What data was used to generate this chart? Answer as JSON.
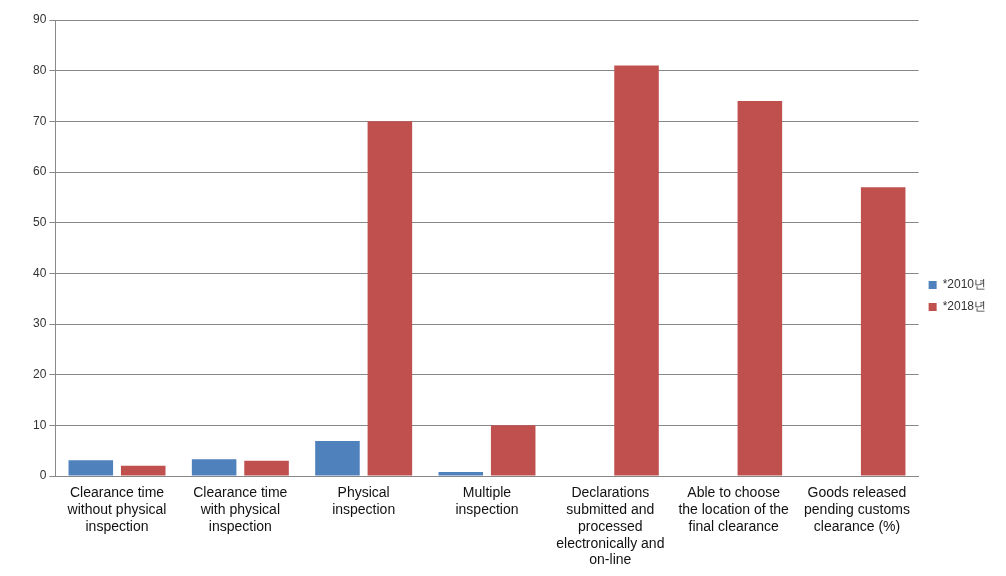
{
  "chart_data": {
    "type": "bar",
    "categories": [
      "Clearance time without physical inspection",
      "Clearance time with physical inspection",
      "Physical inspection",
      "Multiple inspection",
      "Declarations submitted and processed electronically and on-line",
      "Able to choose the location of the final clearance",
      "Goods released pending customs clearance (%)"
    ],
    "series": [
      {
        "name": "*2010년",
        "color": "#4f81bd",
        "values": [
          3.1,
          3.3,
          6.9,
          0.8,
          null,
          null,
          null
        ]
      },
      {
        "name": "*2018년",
        "color": "#c0504d",
        "values": [
          2,
          3,
          70,
          10,
          81,
          74,
          57
        ]
      }
    ],
    "ylim": [
      0,
      90
    ],
    "yticks": [
      0,
      10,
      20,
      30,
      40,
      50,
      60,
      70,
      80,
      90
    ],
    "grid": "y",
    "legend": "right"
  }
}
